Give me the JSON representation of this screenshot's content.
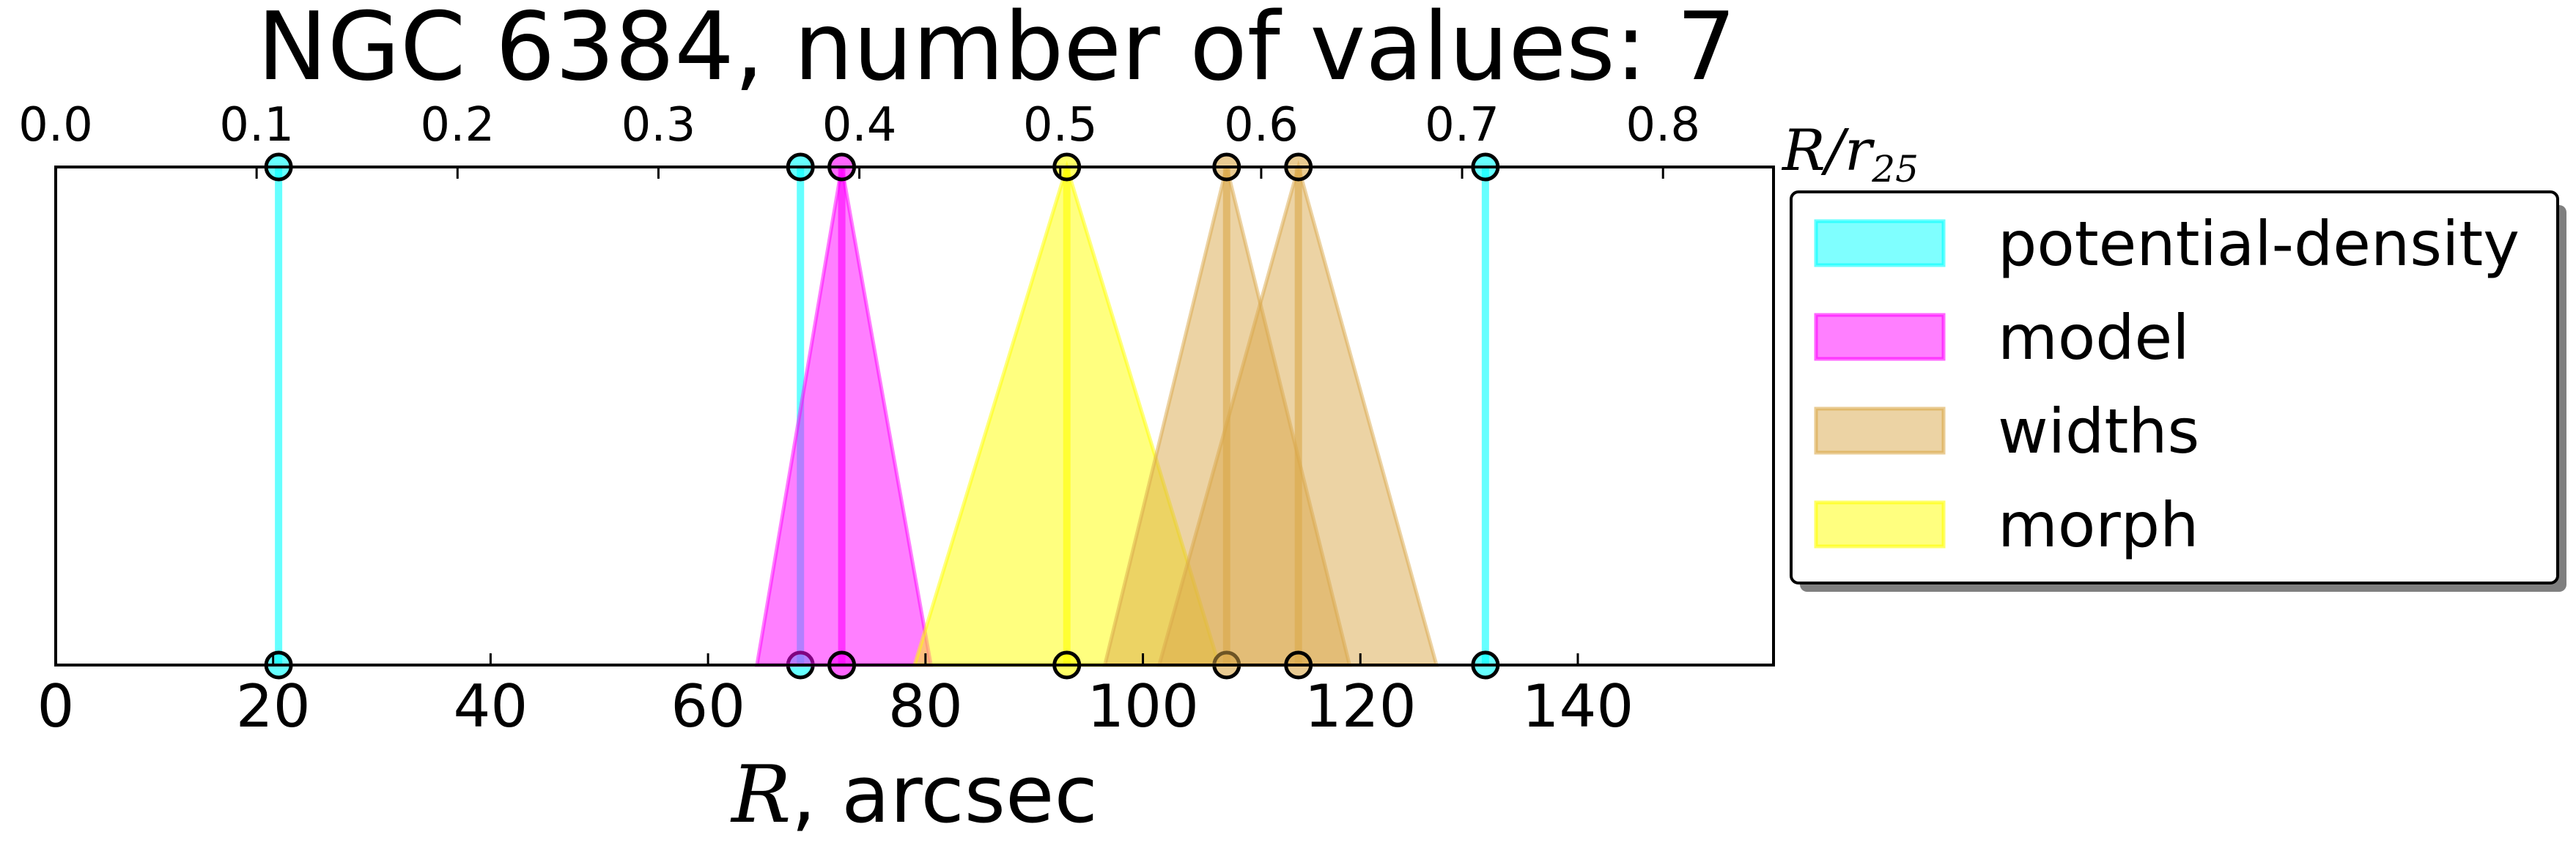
{
  "chart_data": {
    "type": "scatter",
    "title": "NGC 6384, number of values: 7",
    "xlabel_italic": "R",
    "xlabel_rest": ", arcsec",
    "top_axis_label": "R/r",
    "top_axis_label_sub": "25",
    "xlim": [
      0,
      158
    ],
    "top_xlim": [
      0,
      0.855
    ],
    "x_ticks": [
      0,
      20,
      40,
      60,
      80,
      100,
      120,
      140
    ],
    "top_x_ticks": [
      "0.0",
      "0.1",
      "0.2",
      "0.3",
      "0.4",
      "0.5",
      "0.6",
      "0.7",
      "0.8"
    ],
    "top_x_tick_values": [
      0.0,
      0.1,
      0.2,
      0.3,
      0.4,
      0.5,
      0.6,
      0.7,
      0.8
    ],
    "legend_position": "outside right",
    "series": [
      {
        "name": "potential-density",
        "color": "#00ffff",
        "points": [
          {
            "x": 20.5,
            "lo": 20.5,
            "hi": 20.5
          },
          {
            "x": 68.5,
            "lo": 68.5,
            "hi": 68.5
          },
          {
            "x": 131.5,
            "lo": 131.5,
            "hi": 131.5
          }
        ]
      },
      {
        "name": "model",
        "color": "#ff00ff",
        "points": [
          {
            "x": 72.3,
            "lo": 64.5,
            "hi": 80.5
          }
        ]
      },
      {
        "name": "widths",
        "color": "#daa84a",
        "points": [
          {
            "x": 107.7,
            "lo": 96.5,
            "hi": 119.0
          },
          {
            "x": 114.3,
            "lo": 101.5,
            "hi": 127.0
          }
        ]
      },
      {
        "name": "morph",
        "color": "#ffff00",
        "points": [
          {
            "x": 93.0,
            "lo": 79.0,
            "hi": 107.0
          }
        ]
      }
    ]
  }
}
